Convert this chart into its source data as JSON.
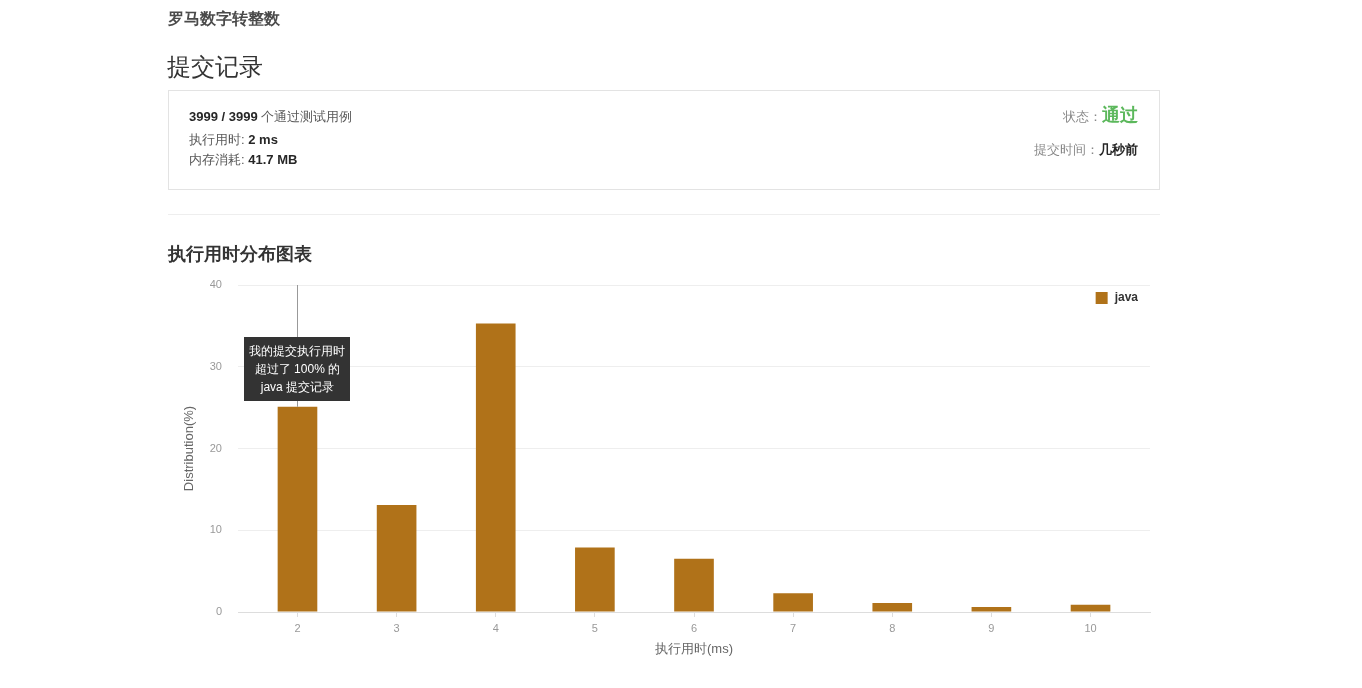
{
  "chart_data": [
    {
      "type": "other",
      "title": "罗马数字转整数",
      "subtitle": "提交记录",
      "annotations": [
        "3999 / 3999 个通过测试用例",
        "执行用时: 2 ms",
        "内存消耗: 41.7 MB",
        "状态：通过",
        "提交时间：几秒前"
      ]
    },
    {
      "type": "bar",
      "title": "执行用时分布图表",
      "xlabel": "执行用时(ms)",
      "ylabel": "Distribution(%)",
      "x": [
        2,
        3,
        4,
        5,
        6,
        7,
        8,
        9,
        10
      ],
      "xlim": [
        1.4,
        10.6
      ],
      "xticks": [
        2,
        3,
        4,
        5,
        6,
        7,
        8,
        9,
        10
      ],
      "ylim": [
        0,
        40
      ],
      "yticks": [
        0,
        10,
        20,
        30,
        40
      ],
      "series": [
        {
          "name": "java",
          "color": "#b07219",
          "values": [
            25.1,
            13.1,
            35.3,
            7.9,
            6.5,
            2.3,
            1.1,
            0.6,
            0.9
          ]
        }
      ],
      "grid": "y",
      "legend": "top right",
      "ref_lines": [
        {
          "axis": "x",
          "value": 2,
          "label": "我的提交执行用时超过了 100% 的 java 提交记录",
          "color": "#999999"
        }
      ]
    }
  ]
}
